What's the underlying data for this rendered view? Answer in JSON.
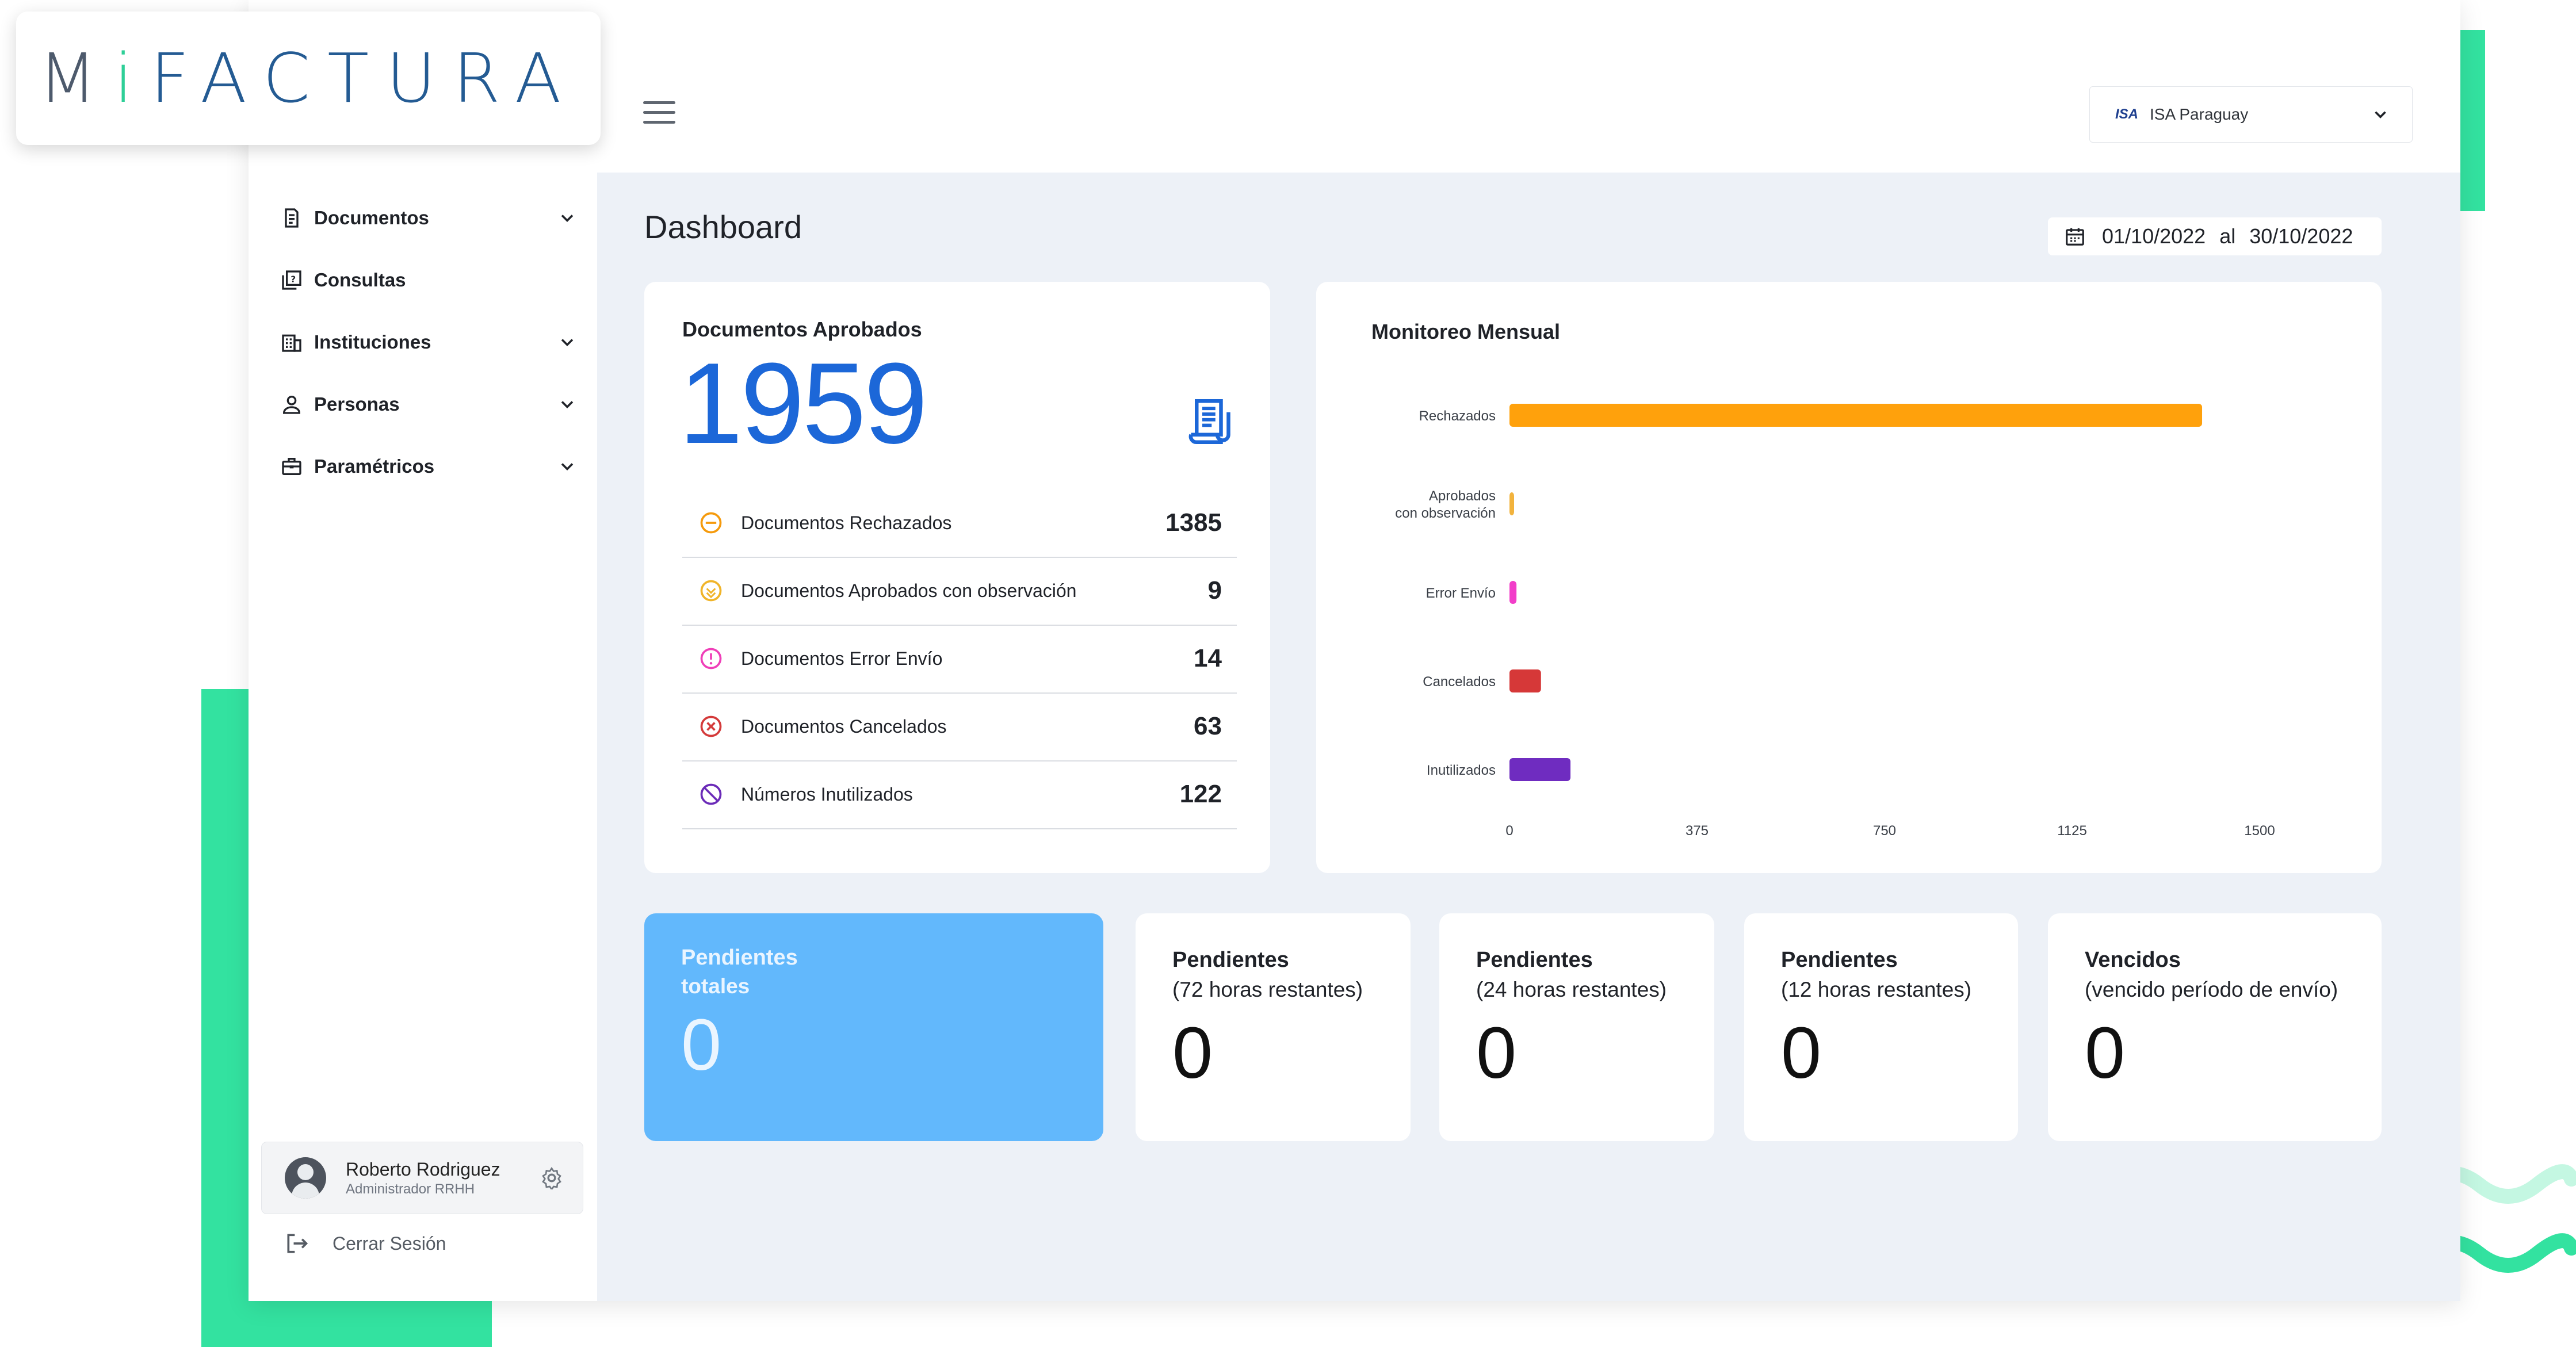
{
  "brand": {
    "logo_prefix": "M",
    "logo_i": "i",
    "logo_suffix": "FACTURA",
    "colors": {
      "green": "#33e2a0",
      "blue": "#1c67d8",
      "navy": "#245b93"
    }
  },
  "sidebar": {
    "items": [
      {
        "label": "Documentos",
        "icon": "document-icon",
        "expandable": true
      },
      {
        "label": "Consultas",
        "icon": "query-icon",
        "expandable": false
      },
      {
        "label": "Instituciones",
        "icon": "building-icon",
        "expandable": true
      },
      {
        "label": "Personas",
        "icon": "person-icon",
        "expandable": true
      },
      {
        "label": "Paramétricos",
        "icon": "briefcase-icon",
        "expandable": true
      }
    ],
    "user": {
      "name": "Roberto Rodriguez",
      "role": "Administrador RRHH"
    },
    "logout_label": "Cerrar Sesión"
  },
  "header": {
    "company_logo": "ISA",
    "company_name": "ISA Paraguay"
  },
  "main": {
    "title": "Dashboard",
    "date_from": "01/10/2022",
    "date_sep": "al",
    "date_to": "30/10/2022",
    "approved": {
      "title": "Documentos Aprobados",
      "value": "1959",
      "rows": [
        {
          "label": "Documentos Rechazados",
          "value": "1385",
          "icon": "minus-circle-icon",
          "color": "#f59a0c"
        },
        {
          "label": "Documentos Aprobados con observación",
          "value": "9",
          "icon": "check-circle-icon",
          "color": "#f0b429"
        },
        {
          "label": "Documentos Error Envío",
          "value": "14",
          "icon": "alert-circle-icon",
          "color": "#ef3fb8"
        },
        {
          "label": "Documentos Cancelados",
          "value": "63",
          "icon": "x-circle-icon",
          "color": "#d43a3a"
        },
        {
          "label": "Números Inutilizados",
          "value": "122",
          "icon": "ban-circle-icon",
          "color": "#6b2bb8"
        }
      ]
    },
    "pending": [
      {
        "line1": "Pendientes",
        "line2": "totales",
        "value": "0",
        "highlight": true
      },
      {
        "line1": "Pendientes",
        "line2": "(72 horas restantes)",
        "value": "0",
        "highlight": false
      },
      {
        "line1": "Pendientes",
        "line2": "(24 horas restantes)",
        "value": "0",
        "highlight": false
      },
      {
        "line1": "Pendientes",
        "line2": "(12 horas restantes)",
        "value": "0",
        "highlight": false
      },
      {
        "line1": "Vencidos",
        "line2": "(vencido período de envío)",
        "value": "0",
        "highlight": false
      }
    ]
  },
  "chart_data": {
    "type": "bar",
    "orientation": "horizontal",
    "title": "Monitoreo Mensual",
    "categories": [
      "Rechazados",
      "Aprobados con observación",
      "Error Envío",
      "Cancelados",
      "Inutilizados"
    ],
    "category_lines": [
      [
        "Rechazados"
      ],
      [
        "Aprobados",
        "con observación"
      ],
      [
        "Error Envío"
      ],
      [
        "Cancelados"
      ],
      [
        "Inutilizados"
      ]
    ],
    "values": [
      1385,
      9,
      14,
      63,
      122
    ],
    "colors": [
      "#ffa10c",
      "#f2b33d",
      "#f23ec9",
      "#d63838",
      "#6f2cc0"
    ],
    "xlim": [
      0,
      1500
    ],
    "xticks": [
      "0",
      "375",
      "750",
      "1125",
      "1500"
    ],
    "grid": false,
    "legend": "none"
  }
}
